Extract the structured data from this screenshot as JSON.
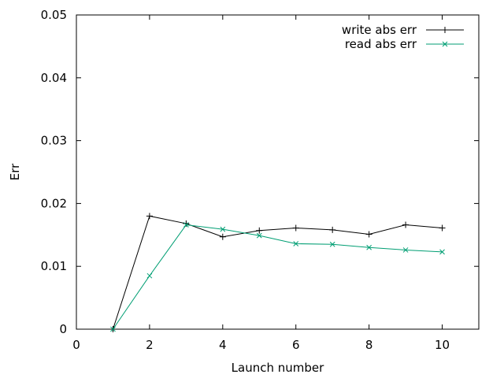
{
  "chart_data": {
    "type": "line",
    "xlabel": "Launch number",
    "ylabel": "Err",
    "xlim": [
      0,
      11
    ],
    "ylim": [
      0,
      0.05
    ],
    "xticks": [
      0,
      2,
      4,
      6,
      8,
      10
    ],
    "yticks": [
      0,
      0.01,
      0.02,
      0.03,
      0.04,
      0.05
    ],
    "ytick_labels": [
      "0",
      "0.01",
      "0.02",
      "0.03",
      "0.04",
      "0.05"
    ],
    "grid": false,
    "legend_position": "top-right",
    "x": [
      1,
      2,
      3,
      4,
      5,
      6,
      7,
      8,
      9,
      10
    ],
    "series": [
      {
        "name": "write abs err",
        "color": "#000000",
        "marker": "plus",
        "values": [
          0.0,
          0.018,
          0.0168,
          0.0147,
          0.0157,
          0.0161,
          0.0158,
          0.0151,
          0.0166,
          0.0161
        ]
      },
      {
        "name": "read abs err",
        "color": "#009e73",
        "marker": "cross",
        "values": [
          0.0,
          0.0085,
          0.0166,
          0.0159,
          0.0149,
          0.0136,
          0.0135,
          0.013,
          0.0126,
          0.0123
        ]
      }
    ]
  }
}
